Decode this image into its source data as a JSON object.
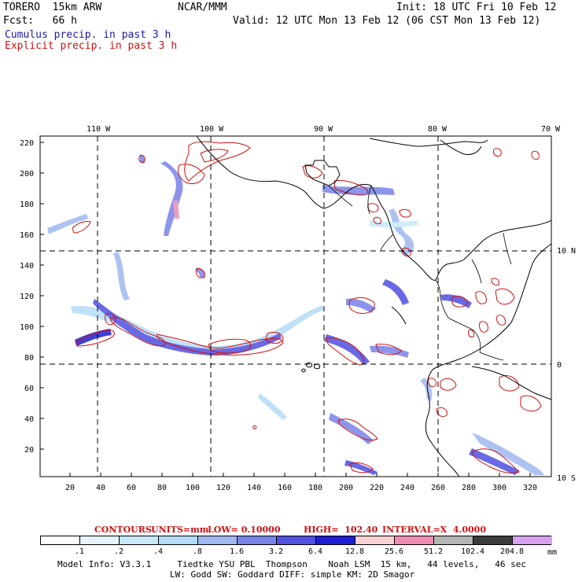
{
  "header": {
    "model": "TORERO  15km ARW",
    "org": "NCAR/MMM",
    "init": "Init: 18 UTC Fri 10 Feb 12",
    "fcst": "Fcst:   66 h",
    "valid": "Valid: 12 UTC Mon 13 Feb 12 (06 CST Mon 13 Feb 12)",
    "cumulus": "Cumulus precip. in past 3 h",
    "explicit": "Explicit precip. in past 3 h"
  },
  "axes": {
    "top_lon": [
      "110 W",
      "100 W",
      "90 W",
      "80 W",
      "70 W"
    ],
    "right_lat": [
      "10 N",
      "0",
      "10 S"
    ],
    "left_ticks": [
      "220",
      "200",
      "180",
      "160",
      "140",
      "120",
      "100",
      "80",
      "60",
      "40",
      "20"
    ],
    "bottom_ticks": [
      "20",
      "40",
      "60",
      "80",
      "100",
      "120",
      "140",
      "160",
      "180",
      "200",
      "220",
      "240",
      "260",
      "280",
      "300",
      "320"
    ]
  },
  "contour_info": {
    "contours": "CONTOURS:",
    "units": "UNITS=mm",
    "low": "LOW= 0.10000",
    "high": "HIGH=  102.40",
    "interval": "INTERVAL=X  4.0000"
  },
  "colorbar": {
    "labels": [
      ".1",
      ".2",
      ".4",
      ".8",
      "1.6",
      "3.2",
      "6.4",
      "12.8",
      "25.6",
      "51.2",
      "102.4",
      "204.8"
    ],
    "unit": "mm",
    "colors": [
      "#ffffff",
      "#e6f4fc",
      "#c8eaf8",
      "#b4dcf6",
      "#a0b8f0",
      "#7882e8",
      "#5050e0",
      "#1e1ed2",
      "#f8d2d2",
      "#f08cb4",
      "#b4b4b4",
      "#3c3c3c",
      "#d7a0f0"
    ]
  },
  "footer": {
    "line1": "Model Info: V3.3.1     Tiedtke YSU PBL  Thompson    Noah LSM  15 km,   44 levels,   46 sec",
    "line2": "LW: Godd SW: Goddard DIFF: simple KM: 2D Smagor"
  }
}
